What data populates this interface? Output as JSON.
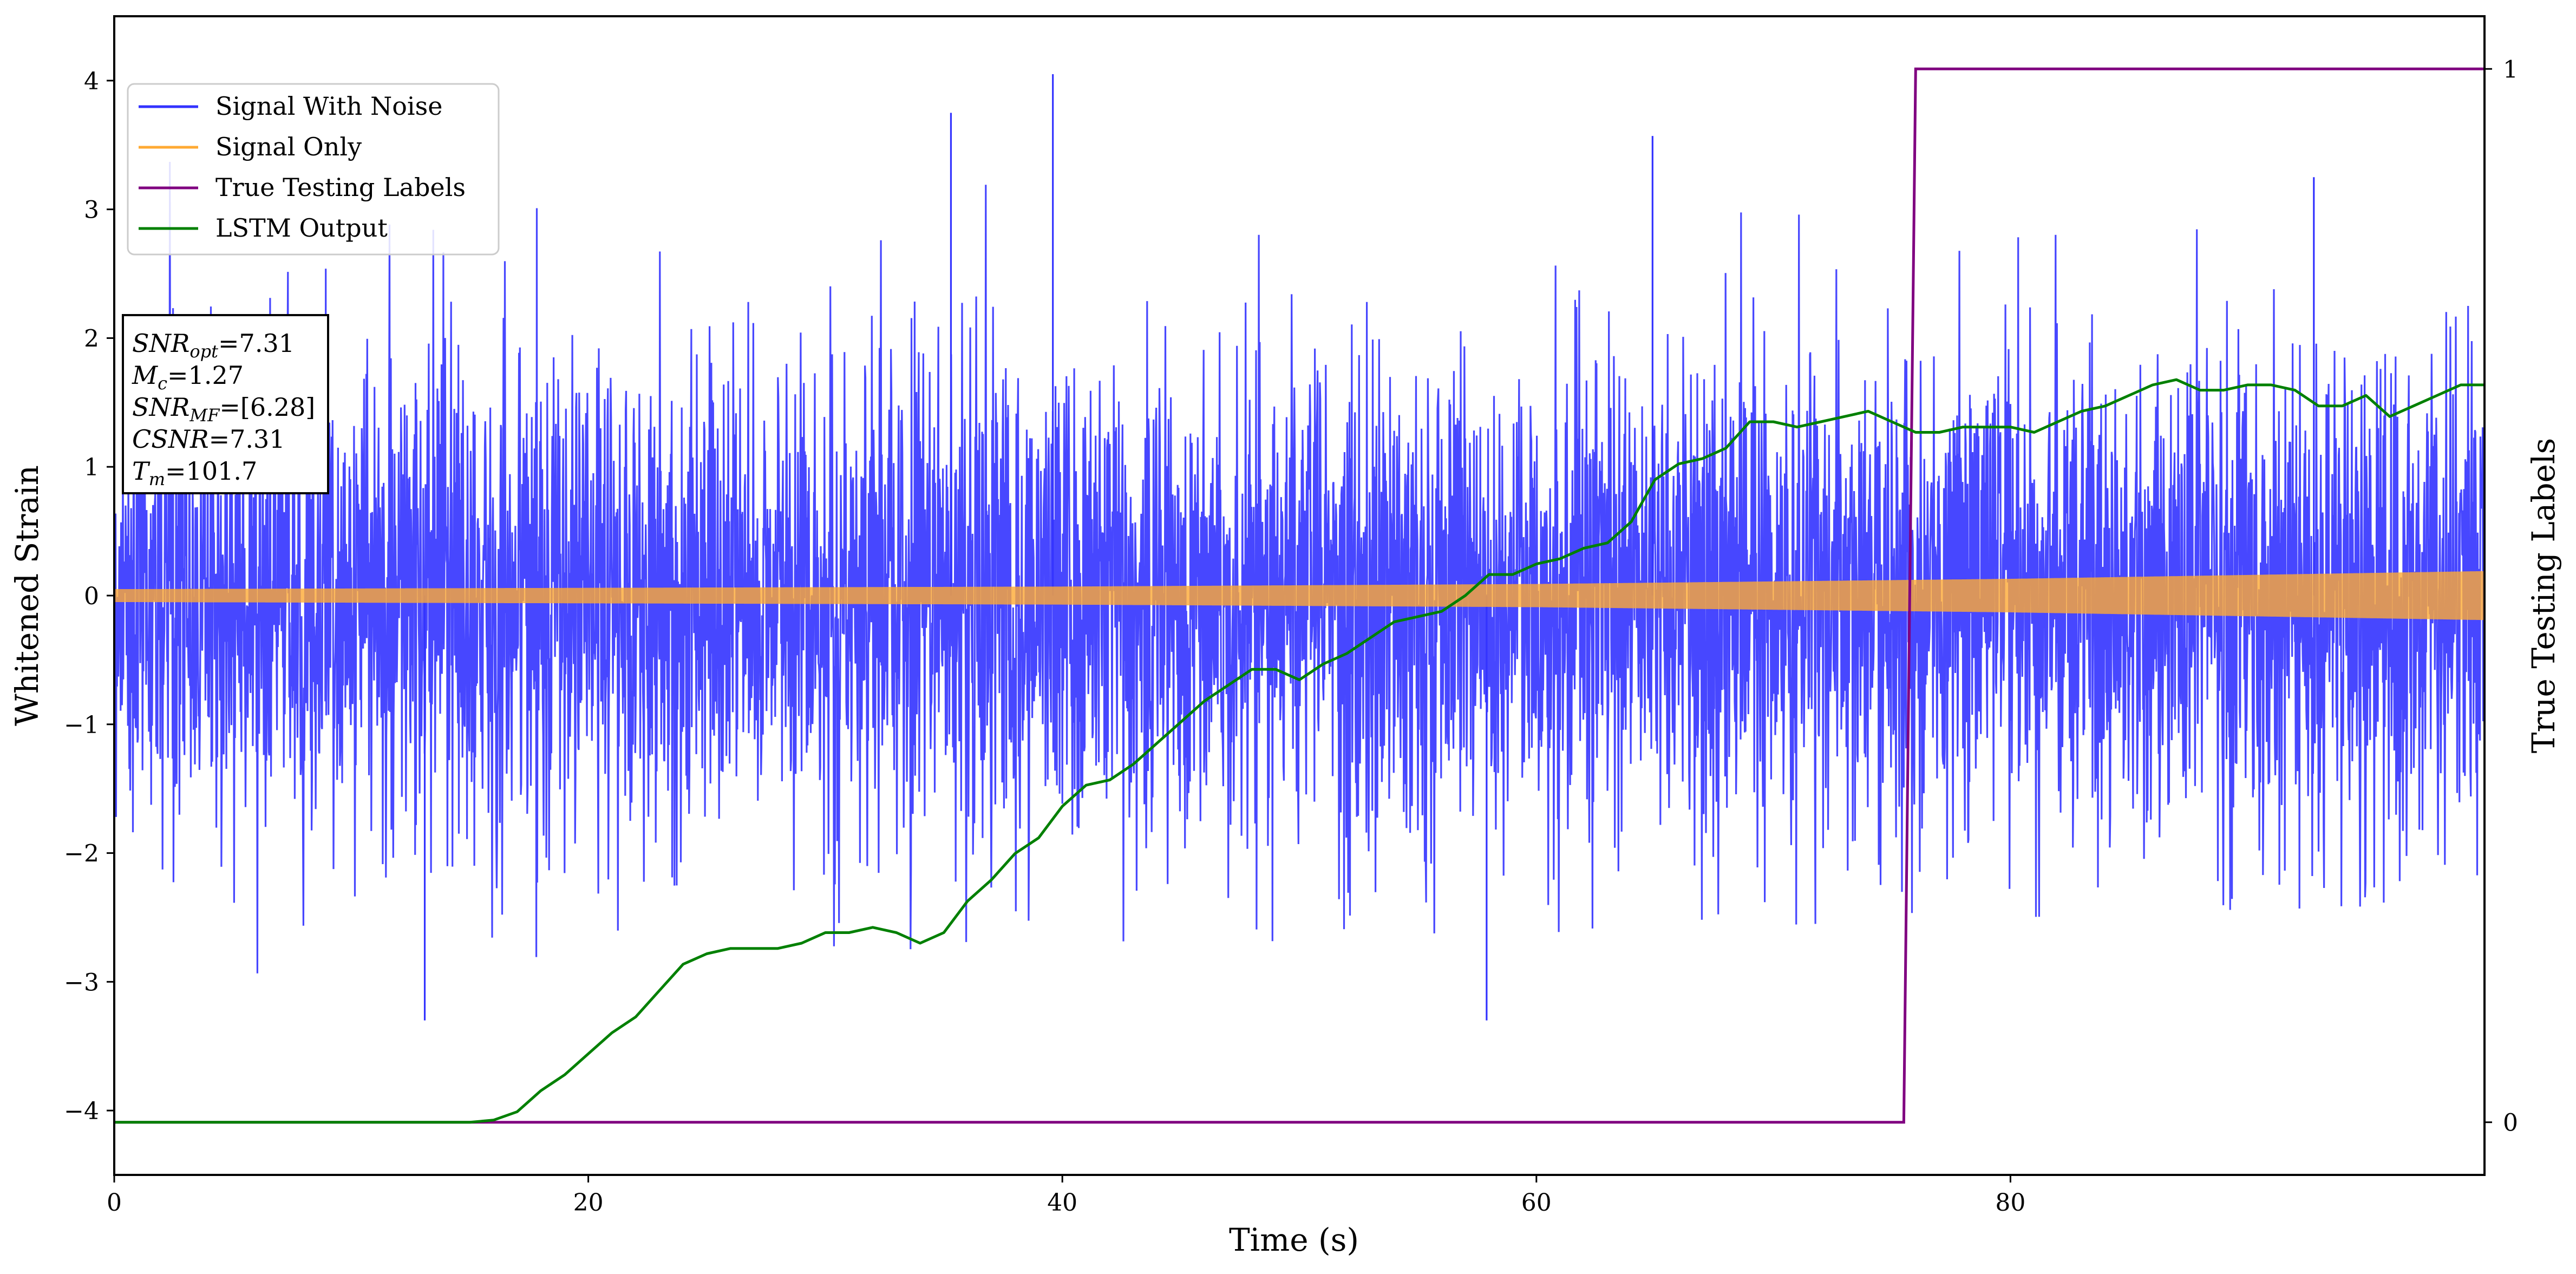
{
  "chart_data": {
    "type": "line",
    "title": "",
    "xlabel": "Time (s)",
    "ylabel": "Whitened Strain",
    "y2label": "True Testing Labels",
    "xlim": [
      0,
      100
    ],
    "ylim": [
      -4.5,
      4.5
    ],
    "y2lim": [
      -0.05,
      1.05
    ],
    "grid": false,
    "legend_position": "top-left",
    "x_ticks": [
      "0",
      "20",
      "40",
      "60",
      "80"
    ],
    "y_ticks": [
      "−4",
      "−3",
      "−2",
      "−1",
      "0",
      "1",
      "2",
      "3",
      "4"
    ],
    "y2_ticks": [
      "0",
      "1"
    ],
    "annotation": [
      {
        "name": "SNR",
        "sub": "opt",
        "value": "=7.31"
      },
      {
        "name": "M",
        "sub": "c",
        "value": "=1.27"
      },
      {
        "name": "SNR",
        "sub": "MF",
        "value": "=[6.28]"
      },
      {
        "name": "CSNR",
        "sub": "",
        "value": "=7.31"
      },
      {
        "name": "T",
        "sub": "m",
        "value": "=101.7"
      }
    ],
    "series": [
      {
        "name": "Signal With Noise",
        "color": "#3333ff",
        "axis": "left",
        "noise_std": 0.95,
        "x": [
          0,
          100
        ],
        "y_envelope_max": [
          4.05,
          3.25
        ],
        "y_envelope_min": [
          -3.3,
          -2.65
        ],
        "notable_peaks": [
          [
            13.1,
            -3.3
          ],
          [
            35.3,
            3.75
          ],
          [
            39.6,
            4.05
          ],
          [
            57.9,
            -3.3
          ],
          [
            64.9,
            3.57
          ],
          [
            92.8,
            3.25
          ]
        ]
      },
      {
        "name": "Signal Only",
        "color": "#ffaa33",
        "axis": "left",
        "x": [
          0,
          20,
          40,
          60,
          80,
          100
        ],
        "amplitude": [
          0.05,
          0.06,
          0.07,
          0.09,
          0.13,
          0.19
        ]
      },
      {
        "name": "True Testing Labels",
        "color": "#800080",
        "axis": "right",
        "x": [
          0,
          75.5,
          76.0,
          100
        ],
        "y": [
          0,
          0,
          1,
          1
        ]
      },
      {
        "name": "LSTM Output",
        "color": "#008000",
        "axis": "right",
        "x": [
          0,
          15,
          16,
          17,
          18,
          19,
          20,
          21,
          22,
          23,
          24,
          25,
          26,
          27,
          28,
          29,
          30,
          31,
          32,
          33,
          34,
          35,
          36,
          37,
          38,
          39,
          40,
          41,
          42,
          43,
          44,
          45,
          46,
          47,
          48,
          49,
          50,
          51,
          52,
          53,
          54,
          55,
          56,
          57,
          58,
          59,
          60,
          61,
          62,
          63,
          64,
          65,
          66,
          67,
          68,
          69,
          70,
          71,
          72,
          73,
          74,
          75,
          76,
          77,
          78,
          79,
          80,
          81,
          82,
          83,
          84,
          85,
          86,
          87,
          88,
          89,
          90,
          91,
          92,
          93,
          94,
          95,
          96,
          97,
          98,
          99,
          100
        ],
        "y": [
          0,
          0,
          0.002,
          0.01,
          0.03,
          0.045,
          0.065,
          0.085,
          0.1,
          0.125,
          0.15,
          0.16,
          0.165,
          0.165,
          0.165,
          0.17,
          0.18,
          0.18,
          0.185,
          0.18,
          0.17,
          0.18,
          0.21,
          0.23,
          0.255,
          0.27,
          0.3,
          0.32,
          0.325,
          0.34,
          0.36,
          0.38,
          0.4,
          0.415,
          0.43,
          0.43,
          0.42,
          0.435,
          0.445,
          0.46,
          0.475,
          0.48,
          0.485,
          0.5,
          0.52,
          0.52,
          0.53,
          0.535,
          0.545,
          0.55,
          0.57,
          0.61,
          0.625,
          0.63,
          0.64,
          0.665,
          0.665,
          0.66,
          0.665,
          0.67,
          0.675,
          0.665,
          0.655,
          0.655,
          0.66,
          0.66,
          0.66,
          0.655,
          0.665,
          0.675,
          0.68,
          0.69,
          0.7,
          0.705,
          0.695,
          0.695,
          0.7,
          0.7,
          0.695,
          0.68,
          0.68,
          0.69,
          0.67,
          0.68,
          0.69,
          0.7,
          0.7
        ]
      }
    ]
  }
}
